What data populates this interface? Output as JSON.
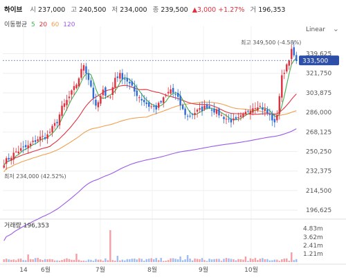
{
  "header": {
    "name": "하이브",
    "open_label": "시",
    "open": "237,000",
    "high_label": "고",
    "high": "240,500",
    "low_label": "저",
    "low": "234,000",
    "close_label": "종",
    "close": "239,500",
    "change": "▲3,000 +1.27%",
    "volume_label": "거",
    "volume": "196,353"
  },
  "ma": {
    "label": "이동평균",
    "p5": "5",
    "p20": "20",
    "p60": "60",
    "p120": "120",
    "colors": {
      "p5": "#3fae49",
      "p20": "#e0303d",
      "p60": "#f0a050",
      "p120": "#9b59e8"
    }
  },
  "scale_mode": "Linear",
  "colors": {
    "up": "#e0303d",
    "down": "#2e6bd6",
    "current_tag": "#2d4fa8"
  },
  "chart_data": {
    "type": "candlestick",
    "x_ticks": [
      "14",
      "6월",
      "7월",
      "8월",
      "9월",
      "10월"
    ],
    "y_ticks": [
      "339,625",
      "321,750",
      "303,875",
      "286,000",
      "268,125",
      "250,250",
      "232,375",
      "214,500",
      "196,625"
    ],
    "ylim": [
      191000,
      352000
    ],
    "current_price": "333,500",
    "max_label": "최고 349,500 (-4.58%)",
    "min_label": "최저 234,000 (42.52%)",
    "volume_title": "거래량",
    "volume_value": "196,353",
    "volume_ticks": [
      "4.83m",
      "3.62m",
      "2.41m",
      "1.21m"
    ],
    "volume_ylim": [
      0,
      5600000
    ],
    "anchors": [
      [
        0,
        240000
      ],
      [
        5,
        250000
      ],
      [
        10,
        255000
      ],
      [
        14,
        262000
      ],
      [
        18,
        265000
      ],
      [
        22,
        278000
      ],
      [
        24,
        290000
      ],
      [
        27,
        300000
      ],
      [
        30,
        312000
      ],
      [
        33,
        330000
      ],
      [
        36,
        310000
      ],
      [
        38,
        290000
      ],
      [
        41,
        305000
      ],
      [
        44,
        300000
      ],
      [
        46,
        318000
      ],
      [
        48,
        320000
      ],
      [
        51,
        315000
      ],
      [
        54,
        305000
      ],
      [
        57,
        298000
      ],
      [
        60,
        292000
      ],
      [
        63,
        290000
      ],
      [
        66,
        298000
      ],
      [
        69,
        307000
      ],
      [
        72,
        298000
      ],
      [
        74,
        288000
      ],
      [
        76,
        282000
      ],
      [
        78,
        285000
      ],
      [
        81,
        288000
      ],
      [
        84,
        292000
      ],
      [
        87,
        288000
      ],
      [
        90,
        283000
      ],
      [
        93,
        279000
      ],
      [
        96,
        278000
      ],
      [
        99,
        283000
      ],
      [
        102,
        290000
      ],
      [
        105,
        293000
      ],
      [
        108,
        288000
      ],
      [
        111,
        280000
      ],
      [
        112,
        275000
      ],
      [
        113,
        285000
      ],
      [
        115,
        318000
      ],
      [
        117,
        330000
      ],
      [
        119,
        342000
      ],
      [
        121,
        333000
      ]
    ],
    "volume_peaks": {
      "10": 1.1,
      "14": 0.6,
      "30": 1.2,
      "44": 4.6,
      "47": 0.9,
      "73": 0.8,
      "76": 1.0,
      "100": 0.8,
      "119": 1.4
    }
  }
}
